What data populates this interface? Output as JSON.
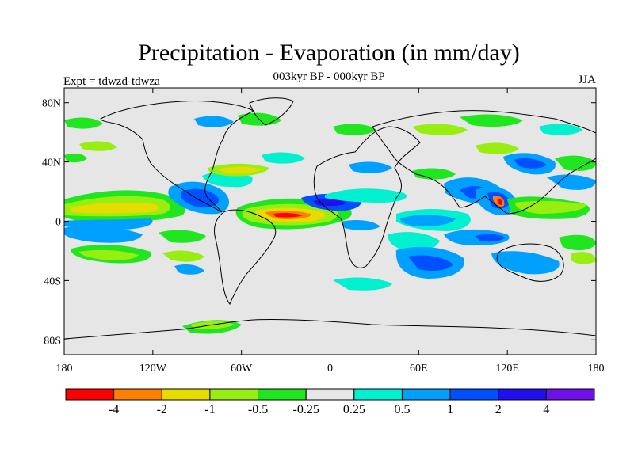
{
  "title": "Precipitation - Evaporation (in mm/day)",
  "subtitle": "003kyr BP - 000kyr BP",
  "left_label": "Expt = tdwzd-tdwza",
  "right_label": "JJA",
  "lat_labels": [
    "80N",
    "40N",
    "0",
    "40S",
    "80S"
  ],
  "lat_values": [
    80,
    40,
    0,
    -40,
    -80
  ],
  "lon_labels": [
    "180",
    "120W",
    "60W",
    "0",
    "60E",
    "120E",
    "180"
  ],
  "lon_values": [
    -180,
    -120,
    -60,
    0,
    60,
    120,
    180
  ],
  "colorbar": {
    "colors": [
      "#ff0000",
      "#ff8000",
      "#e6dc00",
      "#98ee10",
      "#20e620",
      "#e6e6e6",
      "#00f0d0",
      "#00a0ff",
      "#0050ff",
      "#2010f0",
      "#7010e8"
    ],
    "labels": [
      "-4",
      "-2",
      "-1",
      "-0.5",
      "-0.25",
      "0.25",
      "0.5",
      "1",
      "2",
      "4"
    ]
  },
  "colors": {
    "background": "#e6e6e6",
    "coast": "#000000"
  }
}
